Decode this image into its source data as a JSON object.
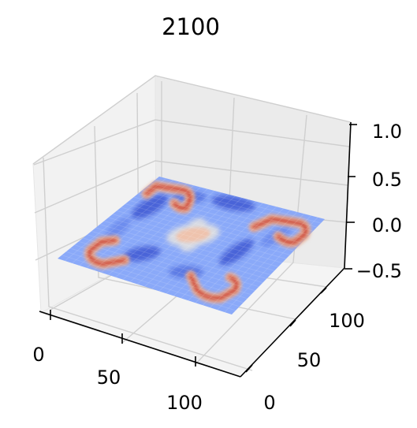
{
  "chart_data": {
    "type": "surface3d",
    "title": "2100",
    "colormap": "coolwarm",
    "x_ticks": [
      "0",
      "50",
      "100"
    ],
    "y_ticks": [
      "0",
      "50",
      "100"
    ],
    "z_ticks": [
      "−0.5",
      "0.0",
      "0.5",
      "1.0"
    ],
    "xlim": [
      0,
      128
    ],
    "ylim": [
      0,
      128
    ],
    "zlim": [
      -0.5,
      1.0
    ],
    "grid": true,
    "surface": {
      "base_value": -0.15,
      "features": [
        {
          "name": "corner-ring-front-left",
          "value": 0.9
        },
        {
          "name": "corner-ring-back-left",
          "value": 0.9
        },
        {
          "name": "corner-ring-back-right",
          "value": 0.9
        },
        {
          "name": "corner-ring-front-right",
          "value": 0.9
        },
        {
          "name": "center-cross",
          "value": 0.35
        }
      ]
    }
  }
}
